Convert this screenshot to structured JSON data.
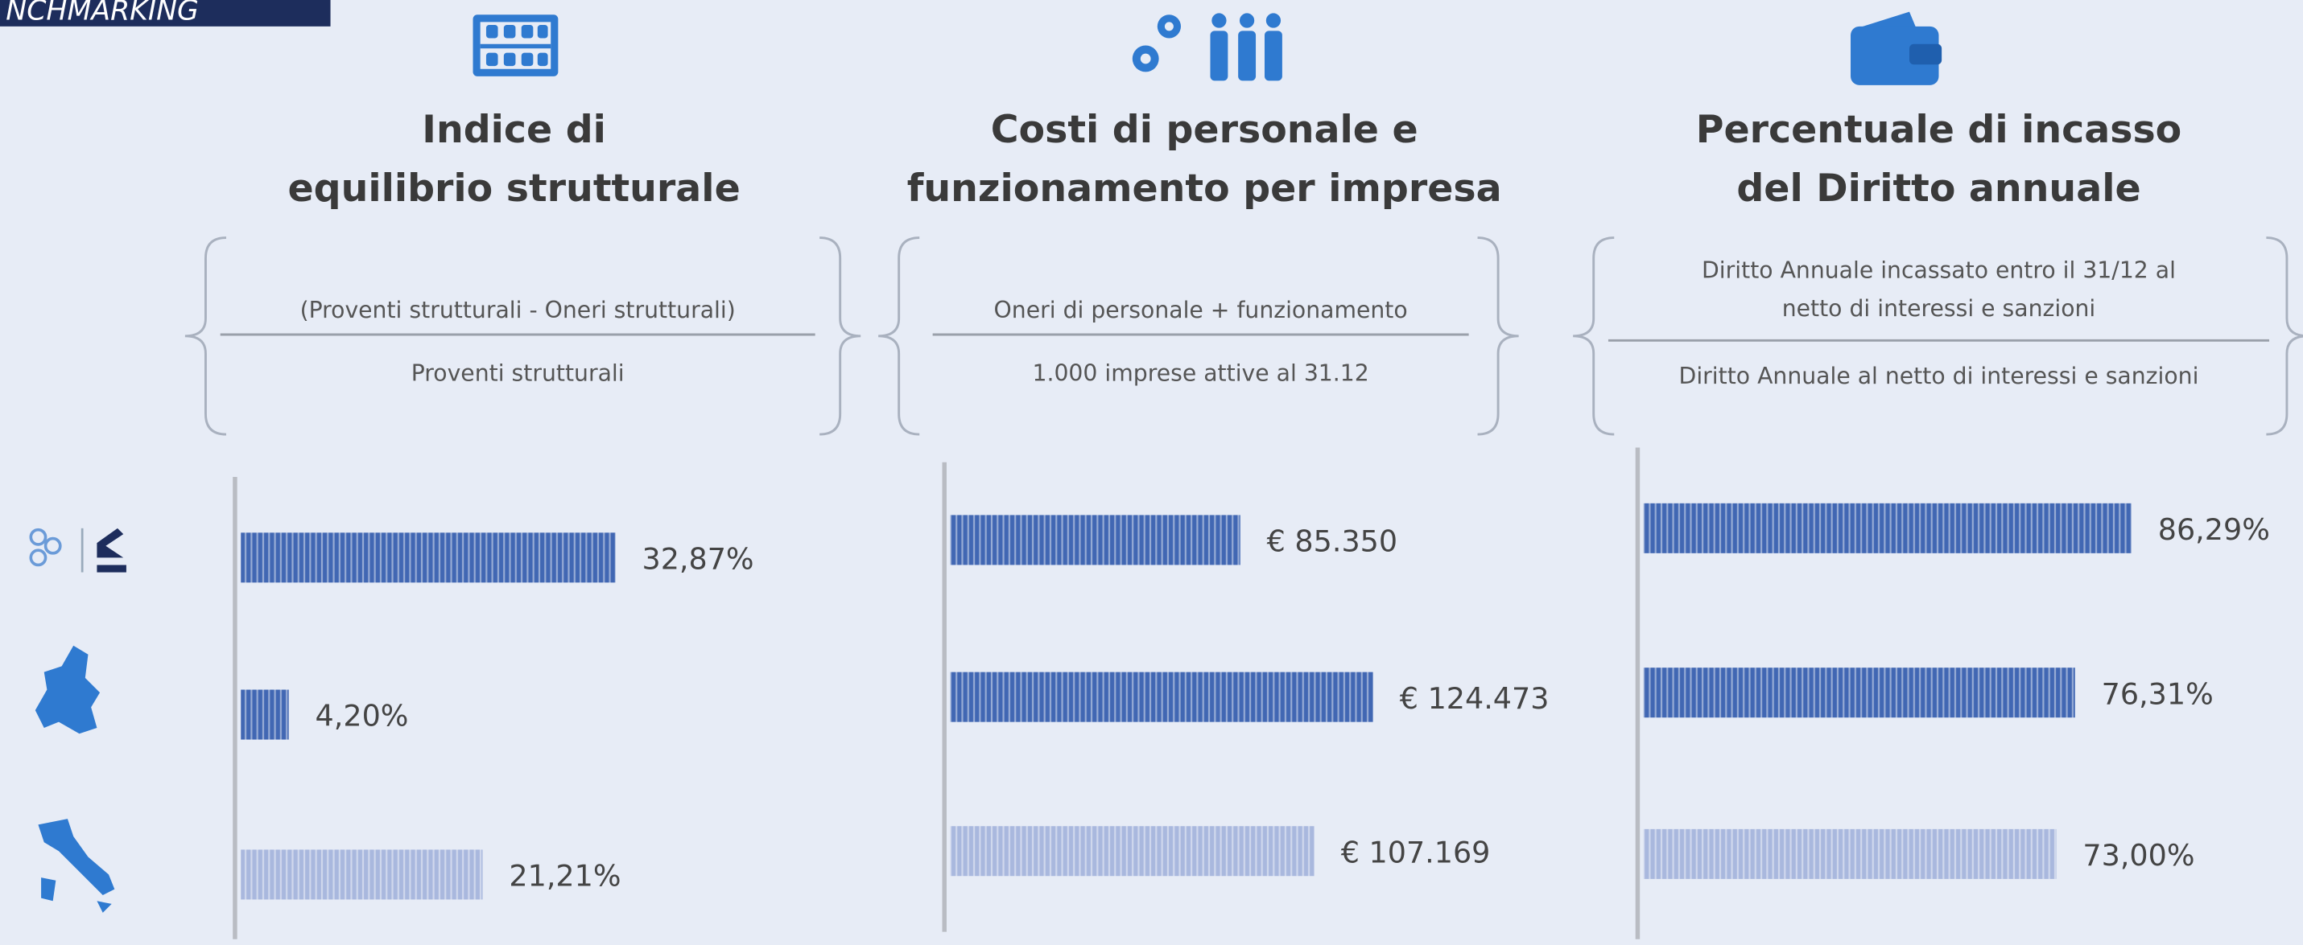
{
  "header": {
    "label": "NCHMARKING"
  },
  "chart_data": [
    {
      "type": "bar",
      "orientation": "horizontal",
      "title": [
        "Indice di",
        "equilibrio strutturale"
      ],
      "numerator": [
        "(Proventi strutturali - Oneri strutturali)"
      ],
      "denominator": "Proventi strutturali",
      "categories": [
        null,
        null,
        null
      ],
      "values": [
        32.87,
        4.2,
        21.21
      ],
      "value_labels": [
        "32,87%",
        "4,20%",
        "21,21%"
      ],
      "colors": [
        "#4167b3",
        "#4167b3",
        "#a9b8de"
      ],
      "xlim": [
        0,
        50
      ]
    },
    {
      "type": "bar",
      "orientation": "horizontal",
      "title": [
        "Costi di personale e",
        "funzionamento per impresa"
      ],
      "numerator": [
        "Oneri di personale + funzionamento"
      ],
      "denominator": "1.000 imprese attive al 31.12",
      "categories": [
        null,
        null,
        null
      ],
      "values": [
        85350,
        124473,
        107169
      ],
      "value_labels": [
        "€ 85.350",
        "€ 124.473",
        "€ 107.169"
      ],
      "colors": [
        "#4167b3",
        "#4167b3",
        "#a9b8de"
      ],
      "xlim": [
        0,
        150000
      ]
    },
    {
      "type": "bar",
      "orientation": "horizontal",
      "title": [
        "Percentuale di incasso",
        "del Diritto annuale"
      ],
      "numerator": [
        "Diritto Annuale incassato entro il 31/12 al",
        "netto di interessi e sanzioni"
      ],
      "denominator": "Diritto Annuale al netto di interessi e sanzioni",
      "categories": [
        null,
        null,
        null
      ],
      "values": [
        86.29,
        76.31,
        73.0
      ],
      "value_labels": [
        "86,29%",
        "76,31%",
        "73,00%"
      ],
      "colors": [
        "#4167b3",
        "#4167b3",
        "#a9b8de"
      ],
      "xlim": [
        0,
        100
      ]
    }
  ]
}
